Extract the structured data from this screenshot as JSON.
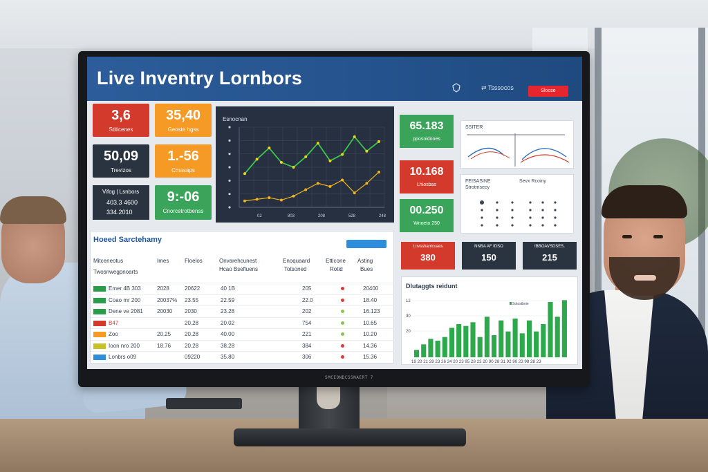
{
  "dashboard": {
    "title": "Live Inventry Lornbors",
    "share_label": "Tsssocos",
    "header_button": "Sloose"
  },
  "kpi_tiles": [
    {
      "value": "3,6",
      "label": "Stiticenes",
      "color": "#d33a2c"
    },
    {
      "value": "35,40",
      "label": "Geoste hgss",
      "color": "#f59a25"
    },
    {
      "value": "50,09",
      "label": "Trevizos",
      "color": "#2a3340"
    },
    {
      "value": "1.-56",
      "label": "Cmasaps",
      "color": "#f59a25"
    },
    {
      "value": "9:-06",
      "label": "Cnorcetrotbenss",
      "color": "#3aa55a"
    }
  ],
  "kpi_text_tile": {
    "line1": "Vifog | Lsnbors",
    "line2": "403.3 4600",
    "line3": "334.2010"
  },
  "line_chart": {
    "title": "Esnocnan",
    "x_labels": [
      "02",
      "803",
      "208",
      "528",
      "248"
    ]
  },
  "right_kpis": [
    {
      "value": "65.183",
      "label": "pposnidones",
      "color": "#3aa55a"
    },
    {
      "value": "10.168",
      "label": "Lhiosbas",
      "color": "#d33a2c"
    },
    {
      "value": "00.250",
      "label": "Wnoeto 250",
      "color": "#3aa55a"
    }
  ],
  "mini_chart_1": {
    "title": "SSITER"
  },
  "mini_chart_2": {
    "title": "FEISASINE",
    "subtitle": "Strotmsecy",
    "side_title": "Sevx Rcoiny"
  },
  "stat_boxes": [
    {
      "label": "Lnvsshanicuaes",
      "value": "380",
      "color": "#d33a2c"
    },
    {
      "label": "NNBA AF IDSO",
      "value": "150",
      "color": "#2a3340"
    },
    {
      "label": "IBBOAVSDSES.",
      "value": "215",
      "color": "#2a3340"
    }
  ],
  "table": {
    "title": "Hoeed Sarctehamy",
    "columns": [
      "Mitceneotus",
      "Imes",
      "Floelos",
      "Onvarehcunest",
      "Hcao Bsefluens",
      "Enoquaard",
      "Totsoned",
      "Etticone",
      "Rotid",
      "Asting",
      "Bues"
    ],
    "subheader": "Twosnwegpnoarts",
    "rows": [
      {
        "name": "Emer 4B 303",
        "c1": "2028",
        "c2": "20622",
        "c3": "40 1B",
        "c4": "205",
        "c5": "20400",
        "swatch": "#2a9d4a",
        "dot": "#e53935"
      },
      {
        "name": "Coao mr 200",
        "c1": "20037%",
        "c2": "23.55",
        "c3": "22.59",
        "c4": "22.0",
        "c5": "18.40",
        "swatch": "#2a9d4a",
        "dot": "#e53935"
      },
      {
        "name": "Dene ve 2081",
        "c1": "20030",
        "c2": "2030",
        "c3": "23.28",
        "c4": "202",
        "c5": "16.123",
        "swatch": "#2a9d4a",
        "dot": "#8bc34a"
      },
      {
        "name": "B47",
        "c1": "",
        "c2": "20.28",
        "c3": "20.02",
        "c4": "754",
        "c5": "10.65",
        "swatch": "#d33a2c",
        "dot": "#8bc34a"
      },
      {
        "name": "Zoo",
        "c1": "20.25",
        "c2": "20.28",
        "c3": "40.00",
        "c4": "221",
        "c5": "10.20",
        "swatch": "#f59a25",
        "dot": "#8bc34a"
      },
      {
        "name": "Ioon nro 200",
        "c1": "18.76",
        "c2": "20.28",
        "c3": "38.28",
        "c4": "384",
        "c5": "14.36",
        "swatch": "#c9c12a",
        "dot": "#e53935"
      },
      {
        "name": "Lonbrs o09",
        "c1": "",
        "c2": "09220",
        "c3": "35.80",
        "c4": "306",
        "c5": "15.36",
        "swatch": "#2d8fdc",
        "dot": "#e53935"
      }
    ]
  },
  "bar_chart": {
    "title": "Dlutaggts reidunt",
    "legend": "Sotostbnie",
    "y_labels": [
      "12",
      "30",
      "20"
    ],
    "x_labels": "19 20 21 28 23 26 24 20 23 95 28 23 20 90 28 31 92 90 23 98 28 23"
  },
  "chart_data": [
    {
      "type": "line",
      "title": "Esnocnan",
      "series": [
        {
          "name": "",
          "values": [
            42,
            60,
            74,
            56,
            50,
            63,
            80,
            58,
            66,
            88,
            70,
            82
          ],
          "color": "#3bc84a"
        },
        {
          "name": "",
          "values": [
            8,
            10,
            12,
            9,
            14,
            22,
            30,
            26,
            34,
            18,
            30,
            44
          ],
          "color": "#f2b51d"
        }
      ],
      "ylim": [
        0,
        100
      ]
    },
    {
      "type": "bar",
      "title": "Dlutaggts reidunt",
      "values": [
        8,
        14,
        20,
        18,
        22,
        32,
        36,
        34,
        38,
        22,
        44,
        24,
        40,
        28,
        42,
        26,
        40,
        28,
        36,
        60,
        44,
        62
      ],
      "ylim": [
        0,
        66
      ],
      "color": "#2ea84d"
    }
  ],
  "monitor_brand": "SMCEONDCSSNAERT 7"
}
